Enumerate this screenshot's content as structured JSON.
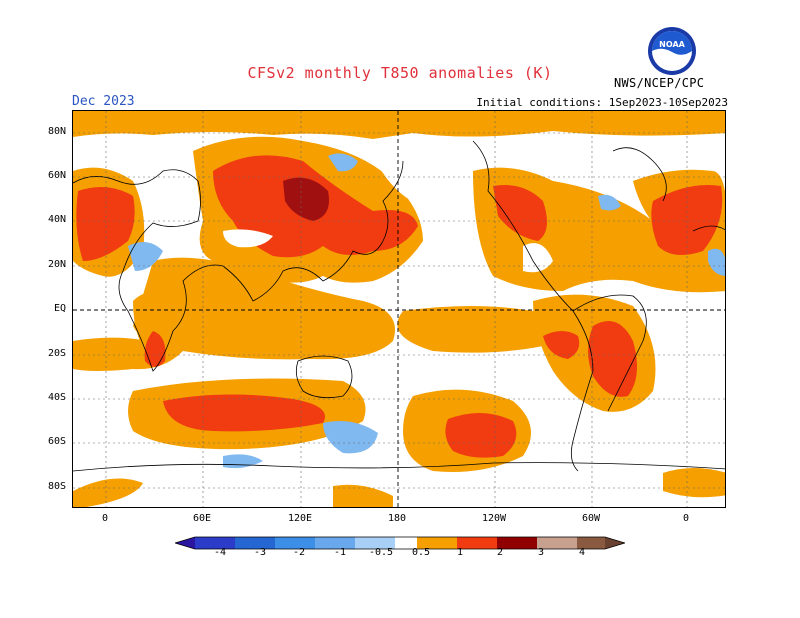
{
  "header": {
    "title": "CFSv2 monthly T850 anomalies (K)",
    "month": "Dec 2023",
    "initial_conditions": "Initial conditions: 1Sep2023-10Sep2023",
    "agency": "NWS/NCEP/CPC",
    "logo_text": "NOAA"
  },
  "map": {
    "lat_labels": [
      "80N",
      "60N",
      "40N",
      "20N",
      "EQ",
      "20S",
      "40S",
      "60S",
      "80S"
    ],
    "lon_labels": [
      "0",
      "60E",
      "120E",
      "180",
      "120W",
      "60W",
      "0"
    ]
  },
  "legend": {
    "labels": [
      "-4",
      "-3",
      "-2",
      "-1",
      "-0.5",
      "0.5",
      "1",
      "2",
      "3",
      "4"
    ],
    "colors": [
      "#2a16a0",
      "#2a3cc8",
      "#2466d2",
      "#3c8ee6",
      "#7ab4f0",
      "#ffffff",
      "#f5a000",
      "#f03c10",
      "#c81e1e",
      "#900000",
      "#c8a090",
      "#6a4030"
    ]
  },
  "colors": {
    "orange": "#f5a000",
    "red": "#f03c10",
    "darkred": "#a01010",
    "lightblue": "#80b8f0",
    "title": "#e0303a",
    "month": "#2a55c0"
  }
}
